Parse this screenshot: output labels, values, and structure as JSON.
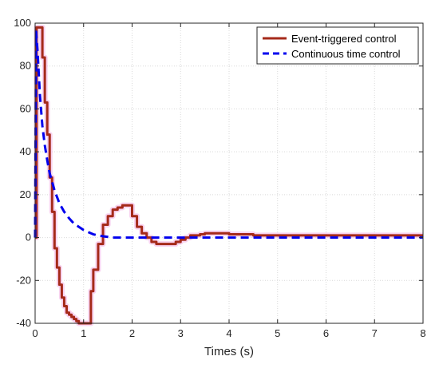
{
  "chart_data": {
    "type": "line",
    "title": "",
    "xlabel": "Times (s)",
    "ylabel": "",
    "xlim": [
      0,
      8
    ],
    "ylim": [
      -40,
      100
    ],
    "xticks": [
      0,
      1,
      2,
      3,
      4,
      5,
      6,
      7,
      8
    ],
    "yticks": [
      -40,
      -20,
      0,
      20,
      40,
      60,
      80,
      100
    ],
    "xtick_labels": [
      "0",
      "1",
      "2",
      "3",
      "4",
      "5",
      "6",
      "7",
      "8"
    ],
    "ytick_labels": [
      "-40",
      "-20",
      "0",
      "20",
      "40",
      "60",
      "80",
      "100"
    ],
    "grid": true,
    "legend_position": "top-right",
    "series": [
      {
        "name": "Event-triggered control",
        "color": "#a52a1a",
        "style": "solid",
        "step": true,
        "x": [
          0,
          0.03,
          0.05,
          0.15,
          0.2,
          0.25,
          0.3,
          0.35,
          0.4,
          0.45,
          0.5,
          0.55,
          0.6,
          0.65,
          0.7,
          0.75,
          0.8,
          0.85,
          0.9,
          0.95,
          1.0,
          1.05,
          1.15,
          1.2,
          1.3,
          1.4,
          1.5,
          1.6,
          1.7,
          1.8,
          1.9,
          2.0,
          2.1,
          2.2,
          2.3,
          2.4,
          2.5,
          2.6,
          2.7,
          2.8,
          2.9,
          3.0,
          3.1,
          3.2,
          3.3,
          3.4,
          3.5,
          3.6,
          3.7,
          3.8,
          3.9,
          4.0,
          4.5,
          5.0,
          5.5,
          6.0,
          6.5,
          7.0,
          7.5,
          8.0
        ],
        "values": [
          0,
          98,
          98,
          84,
          63,
          48,
          28,
          12,
          -5,
          -14,
          -22,
          -28,
          -32,
          -35,
          -36,
          -37,
          -38,
          -39,
          -40,
          -40,
          -40,
          -40,
          -25,
          -15,
          -3,
          6,
          10,
          13,
          14,
          15,
          15,
          10,
          5,
          2,
          0,
          -2,
          -3,
          -3,
          -3,
          -3,
          -2,
          -1,
          0,
          1,
          1,
          1.5,
          2,
          2,
          2,
          2,
          2,
          1.5,
          1,
          1,
          1,
          1,
          1,
          1,
          1,
          1
        ]
      },
      {
        "name": "Continuous time control",
        "color": "#0000ee",
        "style": "dashed",
        "step": false,
        "x": [
          0,
          0.02,
          0.05,
          0.1,
          0.15,
          0.2,
          0.25,
          0.3,
          0.4,
          0.5,
          0.6,
          0.7,
          0.8,
          0.9,
          1.0,
          1.1,
          1.2,
          1.3,
          1.4,
          1.5,
          1.6,
          2.0,
          3.0,
          4.0,
          5.0,
          6.0,
          7.0,
          8.0
        ],
        "values": [
          0,
          96,
          87,
          66,
          52,
          43,
          36,
          30,
          22,
          16,
          12,
          9,
          6.5,
          5,
          3.5,
          2.5,
          1.5,
          1,
          0.6,
          0.3,
          0,
          0,
          0,
          0,
          0,
          0,
          0,
          0
        ]
      }
    ]
  }
}
